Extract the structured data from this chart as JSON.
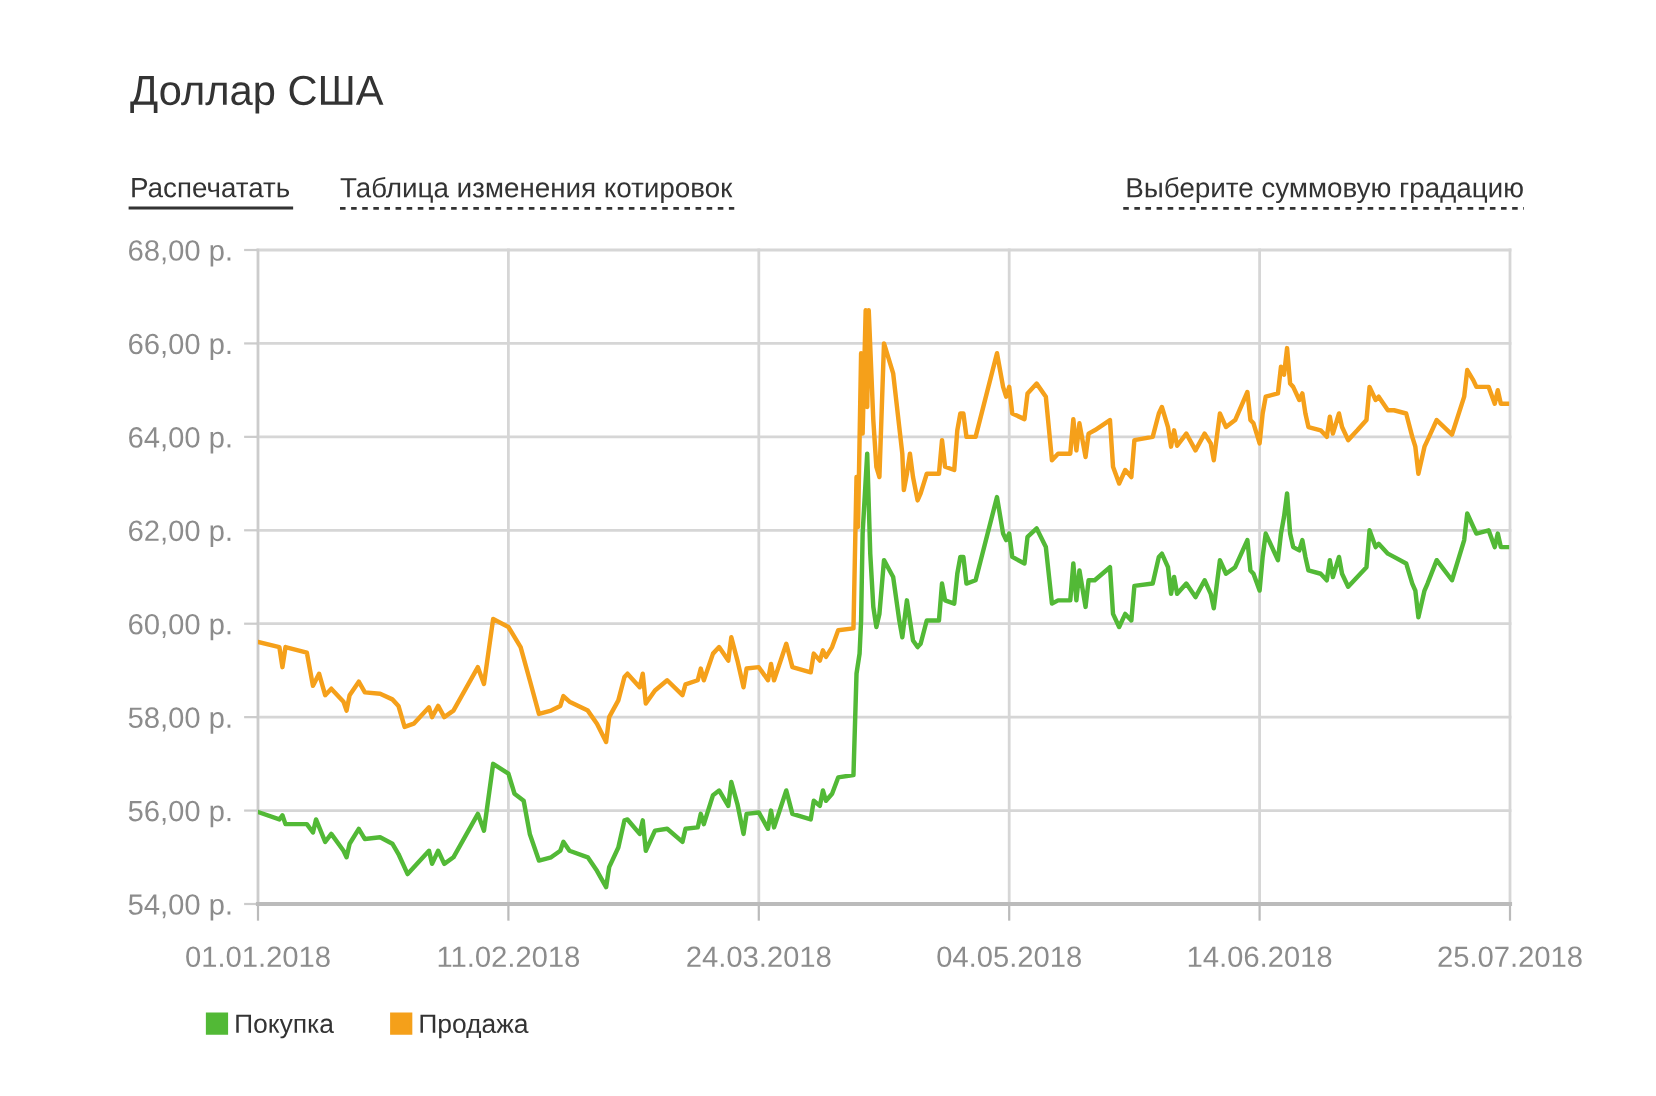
{
  "chart_data": {
    "type": "line",
    "title": "Доллар США",
    "annotations": [
      "Распечатать",
      "Таблица изменения котировок",
      "Выберите суммовую градацию"
    ],
    "xlim": [
      "2018-01-01",
      "2018-07-25"
    ],
    "xticks": [
      {
        "value": "2018-01-01",
        "label": "01.01.2018"
      },
      {
        "value": "2018-02-11",
        "label": "11.02.2018"
      },
      {
        "value": "2018-03-24",
        "label": "24.03.2018"
      },
      {
        "value": "2018-05-04",
        "label": "04.05.2018"
      },
      {
        "value": "2018-06-14",
        "label": "14.06.2018"
      },
      {
        "value": "2018-07-25",
        "label": "25.07.2018"
      }
    ],
    "ylim": [
      54,
      68
    ],
    "yticks": [
      {
        "value": 54,
        "label": "54,00 р."
      },
      {
        "value": 56,
        "label": "56,00 р."
      },
      {
        "value": 58,
        "label": "58,00 р."
      },
      {
        "value": 60,
        "label": "60,00 р."
      },
      {
        "value": 62,
        "label": "62,00 р."
      },
      {
        "value": 64,
        "label": "64,00 р."
      },
      {
        "value": 66,
        "label": "66,00 р."
      },
      {
        "value": 68,
        "label": "68,00 р."
      }
    ],
    "grid": true,
    "legend": "bottom left",
    "series": [
      {
        "name": "Покупка",
        "color": "#52b936",
        "x": [
          "2018-01-01",
          "2018-01-04T12:00",
          "2018-01-05",
          "2018-01-05T12:00",
          "2018-01-09",
          "2018-01-10",
          "2018-01-10T12:00",
          "2018-01-12",
          "2018-01-13",
          "2018-01-15",
          "2018-01-15T12:00",
          "2018-01-16",
          "2018-01-17T12:00",
          "2018-01-18T12:00",
          "2018-01-21",
          "2018-01-23",
          "2018-01-24",
          "2018-01-25T12:00",
          "2018-01-29",
          "2018-01-29T12:00",
          "2018-01-30T12:00",
          "2018-01-31T12:00",
          "2018-02-02",
          "2018-02-06",
          "2018-02-07",
          "2018-02-08T12:00",
          "2018-02-11",
          "2018-02-12",
          "2018-02-13T12:00",
          "2018-02-14T12:00",
          "2018-02-16",
          "2018-02-18",
          "2018-02-19T12:00",
          "2018-02-20",
          "2018-02-21",
          "2018-02-24",
          "2018-02-25T12:00",
          "2018-02-27",
          "2018-02-27T12:00",
          "2018-03-01",
          "2018-03-02",
          "2018-03-02T12:00",
          "2018-03-04T12:00",
          "2018-03-05",
          "2018-03-05T12:00",
          "2018-03-07",
          "2018-03-09",
          "2018-03-11T12:00",
          "2018-03-12",
          "2018-03-14",
          "2018-03-14T12:00",
          "2018-03-15",
          "2018-03-16T12:00",
          "2018-03-17T12:00",
          "2018-03-19",
          "2018-03-19T12:00",
          "2018-03-20T12:00",
          "2018-03-21T12:00",
          "2018-03-22",
          "2018-03-24",
          "2018-03-25T12:00",
          "2018-03-26",
          "2018-03-26T12:00",
          "2018-03-28T12:00",
          "2018-03-29T12:00",
          "2018-04-01T12:00",
          "2018-04-02",
          "2018-04-03",
          "2018-04-03T12:00",
          "2018-04-04",
          "2018-04-05",
          "2018-04-06",
          "2018-04-08T12:00",
          "2018-04-09",
          "2018-04-09T12:00",
          "2018-04-09T18:00",
          "2018-04-10",
          "2018-04-10T18:00",
          "2018-04-11T06:00",
          "2018-04-11T18:00",
          "2018-04-12T06:00",
          "2018-04-12T18:00",
          "2018-04-13T12:00",
          "2018-04-15",
          "2018-04-16",
          "2018-04-16T12:00",
          "2018-04-17T06:00",
          "2018-04-17T18:00",
          "2018-04-18T06:00",
          "2018-04-19",
          "2018-04-19T12:00",
          "2018-04-20T12:00",
          "2018-04-22T12:00",
          "2018-04-23",
          "2018-04-23T12:00",
          "2018-04-25",
          "2018-04-25T12:00",
          "2018-04-26",
          "2018-04-26T12:00",
          "2018-04-27",
          "2018-04-28T12:00",
          "2018-05-02",
          "2018-05-03",
          "2018-05-03T12:00",
          "2018-05-04",
          "2018-05-04T12:00",
          "2018-05-06T12:00",
          "2018-05-07",
          "2018-05-08T12:00",
          "2018-05-10",
          "2018-05-11",
          "2018-05-12",
          "2018-05-14",
          "2018-05-14T12:00",
          "2018-05-15",
          "2018-05-15T12:00",
          "2018-05-16T12:00",
          "2018-05-17",
          "2018-05-18",
          "2018-05-20T12:00",
          "2018-05-21",
          "2018-05-22",
          "2018-05-23",
          "2018-05-24",
          "2018-05-24T12:00",
          "2018-05-27T12:00",
          "2018-05-28T12:00",
          "2018-05-29",
          "2018-05-30",
          "2018-05-30T12:00",
          "2018-05-31",
          "2018-05-31T12:00",
          "2018-06-02",
          "2018-06-03T12:00",
          "2018-06-05",
          "2018-06-06",
          "2018-06-06T12:00",
          "2018-06-07T12:00",
          "2018-06-08T12:00",
          "2018-06-10",
          "2018-06-12",
          "2018-06-12T12:00",
          "2018-06-13",
          "2018-06-14",
          "2018-06-14T12:00",
          "2018-06-15",
          "2018-06-17",
          "2018-06-17T12:00",
          "2018-06-18",
          "2018-06-18T12:00",
          "2018-06-19",
          "2018-06-19T12:00",
          "2018-06-20T12:00",
          "2018-06-21",
          "2018-06-21T12:00",
          "2018-06-22",
          "2018-06-24",
          "2018-06-25",
          "2018-06-25T12:00",
          "2018-06-26",
          "2018-06-27",
          "2018-06-27T12:00",
          "2018-06-28T12:00",
          "2018-06-30",
          "2018-07-01T12:00",
          "2018-07-02",
          "2018-07-03",
          "2018-07-03T12:00",
          "2018-07-05",
          "2018-07-06",
          "2018-07-08",
          "2018-07-09",
          "2018-07-09T12:00",
          "2018-07-10",
          "2018-07-11",
          "2018-07-11T12:00",
          "2018-07-13",
          "2018-07-15T12:00",
          "2018-07-17T12:00",
          "2018-07-18",
          "2018-07-19",
          "2018-07-19T12:00",
          "2018-07-21T12:00",
          "2018-07-22T12:00",
          "2018-07-23",
          "2018-07-23T12:00",
          "2018-07-24T12:00"
        ],
        "values": [
          55.97,
          55.81,
          55.9,
          55.71,
          55.71,
          55.53,
          55.81,
          55.33,
          55.5,
          55.14,
          55.0,
          55.29,
          55.61,
          55.39,
          55.43,
          55.29,
          55.07,
          54.64,
          55.14,
          54.86,
          55.14,
          54.86,
          55.0,
          55.93,
          55.57,
          57.0,
          56.79,
          56.36,
          56.21,
          55.5,
          54.93,
          55.0,
          55.14,
          55.33,
          55.14,
          55.0,
          54.71,
          54.36,
          54.79,
          55.21,
          55.79,
          55.81,
          55.5,
          55.79,
          55.14,
          55.57,
          55.61,
          55.33,
          55.61,
          55.64,
          55.93,
          55.71,
          56.33,
          56.43,
          56.1,
          56.61,
          56.14,
          55.5,
          55.93,
          55.96,
          55.61,
          56.0,
          55.64,
          56.43,
          55.93,
          55.81,
          56.21,
          56.1,
          56.43,
          56.21,
          56.36,
          56.71,
          56.76,
          58.93,
          59.36,
          60.07,
          61.93,
          63.64,
          61.5,
          60.36,
          59.93,
          60.21,
          61.36,
          61.0,
          60.07,
          59.71,
          60.5,
          60.07,
          59.64,
          59.5,
          59.57,
          60.07,
          60.07,
          60.86,
          60.5,
          60.43,
          61.07,
          61.43,
          61.43,
          60.86,
          60.93,
          62.71,
          61.93,
          61.79,
          61.93,
          61.43,
          61.29,
          61.86,
          62.04,
          61.64,
          60.43,
          60.5,
          60.5,
          61.29,
          60.5,
          61.14,
          60.36,
          60.93,
          60.93,
          61.21,
          60.21,
          59.93,
          60.21,
          60.07,
          60.81,
          60.86,
          61.43,
          61.5,
          61.21,
          60.64,
          61.0,
          60.64,
          60.86,
          60.57,
          60.93,
          60.64,
          60.33,
          61.36,
          61.07,
          61.21,
          61.79,
          61.14,
          61.07,
          60.71,
          61.43,
          61.93,
          61.36,
          61.93,
          62.29,
          62.79,
          61.93,
          61.64,
          61.57,
          61.79,
          61.43,
          61.14,
          61.07,
          60.93,
          61.36,
          61.0,
          61.43,
          61.07,
          60.79,
          61.0,
          61.21,
          62.0,
          61.64,
          61.71,
          61.5,
          61.43,
          61.29,
          60.86,
          60.71,
          60.14,
          60.71,
          60.86,
          61.36,
          60.93,
          61.79,
          62.36,
          62.07,
          61.93,
          62.0,
          61.64,
          61.93,
          61.64,
          61.64
        ]
      },
      {
        "name": "Продажа",
        "color": "#f5a01a",
        "x": [
          "2018-01-01",
          "2018-01-04T12:00",
          "2018-01-05",
          "2018-01-05T12:00",
          "2018-01-09",
          "2018-01-10",
          "2018-01-11",
          "2018-01-12",
          "2018-01-13",
          "2018-01-15",
          "2018-01-15T12:00",
          "2018-01-16",
          "2018-01-17T12:00",
          "2018-01-18T12:00",
          "2018-01-21",
          "2018-01-23",
          "2018-01-24",
          "2018-01-25",
          "2018-01-26T12:00",
          "2018-01-29",
          "2018-01-29T12:00",
          "2018-01-30T12:00",
          "2018-01-31T12:00",
          "2018-02-02",
          "2018-02-06",
          "2018-02-07",
          "2018-02-08T12:00",
          "2018-02-11",
          "2018-02-13",
          "2018-02-14T12:00",
          "2018-02-16",
          "2018-02-18",
          "2018-02-19T12:00",
          "2018-02-20",
          "2018-02-21",
          "2018-02-24",
          "2018-02-25T12:00",
          "2018-02-27",
          "2018-02-27T12:00",
          "2018-03-01",
          "2018-03-02",
          "2018-03-02T12:00",
          "2018-03-04T12:00",
          "2018-03-05",
          "2018-03-05T12:00",
          "2018-03-07",
          "2018-03-09",
          "2018-03-11T12:00",
          "2018-03-12",
          "2018-03-14",
          "2018-03-14T12:00",
          "2018-03-15",
          "2018-03-16T12:00",
          "2018-03-17T12:00",
          "2018-03-19",
          "2018-03-19T12:00",
          "2018-03-20T12:00",
          "2018-03-21T12:00",
          "2018-03-22",
          "2018-03-24",
          "2018-03-25T12:00",
          "2018-03-26",
          "2018-03-26T12:00",
          "2018-03-28T12:00",
          "2018-03-29T12:00",
          "2018-04-01T12:00",
          "2018-04-02",
          "2018-04-03",
          "2018-04-03T12:00",
          "2018-04-04",
          "2018-04-05",
          "2018-04-06",
          "2018-04-08T12:00",
          "2018-04-09",
          "2018-04-09T06:00",
          "2018-04-09T18:00",
          "2018-04-10",
          "2018-04-10T12:00",
          "2018-04-10T18:00",
          "2018-04-11",
          "2018-04-11T18:00",
          "2018-04-12T06:00",
          "2018-04-12T18:00",
          "2018-04-13T12:00",
          "2018-04-15",
          "2018-04-16",
          "2018-04-16T12:00",
          "2018-04-16T18:00",
          "2018-04-17T06:00",
          "2018-04-17T18:00",
          "2018-04-18T06:00",
          "2018-04-19",
          "2018-04-19T12:00",
          "2018-04-20T12:00",
          "2018-04-22T12:00",
          "2018-04-23",
          "2018-04-23T12:00",
          "2018-04-25",
          "2018-04-25T12:00",
          "2018-04-26",
          "2018-04-26T12:00",
          "2018-04-27",
          "2018-04-28T12:00",
          "2018-05-02",
          "2018-05-03",
          "2018-05-03T12:00",
          "2018-05-04",
          "2018-05-04T12:00",
          "2018-05-06T12:00",
          "2018-05-07",
          "2018-05-08T12:00",
          "2018-05-10",
          "2018-05-11",
          "2018-05-12",
          "2018-05-14",
          "2018-05-14T12:00",
          "2018-05-15",
          "2018-05-15T12:00",
          "2018-05-16T12:00",
          "2018-05-17",
          "2018-05-18",
          "2018-05-20T12:00",
          "2018-05-21",
          "2018-05-22",
          "2018-05-23",
          "2018-05-24",
          "2018-05-24T12:00",
          "2018-05-27T12:00",
          "2018-05-28T12:00",
          "2018-05-29",
          "2018-05-30",
          "2018-05-30T12:00",
          "2018-05-31",
          "2018-05-31T12:00",
          "2018-06-02",
          "2018-06-03T12:00",
          "2018-06-05",
          "2018-06-06",
          "2018-06-06T12:00",
          "2018-06-07T12:00",
          "2018-06-08T12:00",
          "2018-06-10",
          "2018-06-12",
          "2018-06-12T12:00",
          "2018-06-13",
          "2018-06-14",
          "2018-06-14T12:00",
          "2018-06-15",
          "2018-06-17",
          "2018-06-17T12:00",
          "2018-06-18",
          "2018-06-18T12:00",
          "2018-06-19",
          "2018-06-19T12:00",
          "2018-06-20T12:00",
          "2018-06-21",
          "2018-06-21T12:00",
          "2018-06-22",
          "2018-06-24",
          "2018-06-25",
          "2018-06-25T12:00",
          "2018-06-26",
          "2018-06-27",
          "2018-06-27T12:00",
          "2018-06-28T12:00",
          "2018-06-30",
          "2018-07-01T12:00",
          "2018-07-02",
          "2018-07-03",
          "2018-07-03T12:00",
          "2018-07-05",
          "2018-07-06",
          "2018-07-08",
          "2018-07-09",
          "2018-07-09T12:00",
          "2018-07-10",
          "2018-07-11",
          "2018-07-11T12:00",
          "2018-07-13",
          "2018-07-15T12:00",
          "2018-07-17T12:00",
          "2018-07-18",
          "2018-07-19",
          "2018-07-19T12:00",
          "2018-07-21T12:00",
          "2018-07-22T12:00",
          "2018-07-23",
          "2018-07-23T12:00",
          "2018-07-24T12:00"
        ],
        "values": [
          59.61,
          59.5,
          59.07,
          59.5,
          59.38,
          58.67,
          58.93,
          58.47,
          58.61,
          58.33,
          58.14,
          58.47,
          58.76,
          58.53,
          58.5,
          58.38,
          58.24,
          57.79,
          57.86,
          58.21,
          58.0,
          58.24,
          58.0,
          58.14,
          59.07,
          58.71,
          60.1,
          59.93,
          59.5,
          58.79,
          58.07,
          58.14,
          58.24,
          58.45,
          58.33,
          58.14,
          57.86,
          57.47,
          58.0,
          58.36,
          58.86,
          58.93,
          58.64,
          58.93,
          58.29,
          58.57,
          58.79,
          58.47,
          58.7,
          58.79,
          59.04,
          58.79,
          59.36,
          59.5,
          59.21,
          59.71,
          59.21,
          58.64,
          59.04,
          59.07,
          58.79,
          59.14,
          58.79,
          59.57,
          59.07,
          58.96,
          59.36,
          59.21,
          59.43,
          59.29,
          59.5,
          59.86,
          59.9,
          63.14,
          62.07,
          65.79,
          64.07,
          66.71,
          64.64,
          66.71,
          64.36,
          63.36,
          63.14,
          66.0,
          65.36,
          64.21,
          63.64,
          62.86,
          63.21,
          63.64,
          63.14,
          62.64,
          62.79,
          63.21,
          63.21,
          63.93,
          63.36,
          63.29,
          64.14,
          64.5,
          64.5,
          64.0,
          64.0,
          65.79,
          65.07,
          64.86,
          65.07,
          64.5,
          64.38,
          64.93,
          65.14,
          64.86,
          63.5,
          63.64,
          63.64,
          64.38,
          63.71,
          64.29,
          63.57,
          64.07,
          64.14,
          64.36,
          63.36,
          63.0,
          63.29,
          63.14,
          63.93,
          64.0,
          64.5,
          64.64,
          64.21,
          63.79,
          64.14,
          63.81,
          64.07,
          63.71,
          64.07,
          63.86,
          63.5,
          64.5,
          64.21,
          64.36,
          64.96,
          64.36,
          64.29,
          63.86,
          64.5,
          64.86,
          64.93,
          65.5,
          65.33,
          65.9,
          65.14,
          65.07,
          64.79,
          64.93,
          64.5,
          64.21,
          64.14,
          64.0,
          64.43,
          64.07,
          64.5,
          64.21,
          63.93,
          64.14,
          64.36,
          65.07,
          64.79,
          64.86,
          64.57,
          64.57,
          64.5,
          64.0,
          63.79,
          63.21,
          63.79,
          63.93,
          64.36,
          64.05,
          64.86,
          65.43,
          65.21,
          65.07,
          65.07,
          64.71,
          65.0,
          64.71,
          64.71
        ]
      }
    ]
  }
}
